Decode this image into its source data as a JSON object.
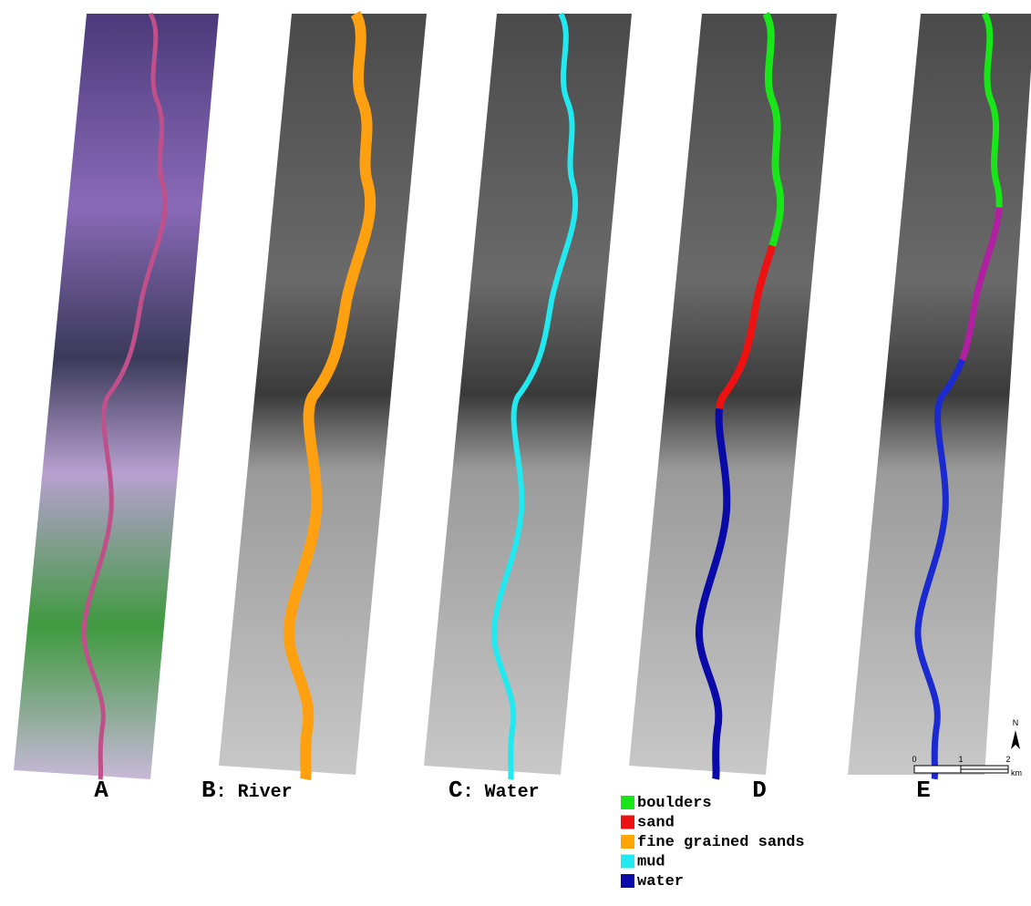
{
  "panels": [
    {
      "letter": "A"
    },
    {
      "letter": "B",
      "caption": ": River"
    },
    {
      "letter": "C",
      "caption": ": Water"
    },
    {
      "letter": "D"
    },
    {
      "letter": "E"
    }
  ],
  "legend": [
    {
      "label": "boulders",
      "color": "#19e619"
    },
    {
      "label": "sand",
      "color": "#ee1111"
    },
    {
      "label": "fine grained sands",
      "color": "#ffa500"
    },
    {
      "label": "mud",
      "color": "#22e8f0"
    },
    {
      "label": "water",
      "color": "#0a0aa8"
    }
  ],
  "scale_bar": {
    "labels": [
      0,
      1,
      2
    ],
    "unit": "km"
  },
  "north": "N"
}
